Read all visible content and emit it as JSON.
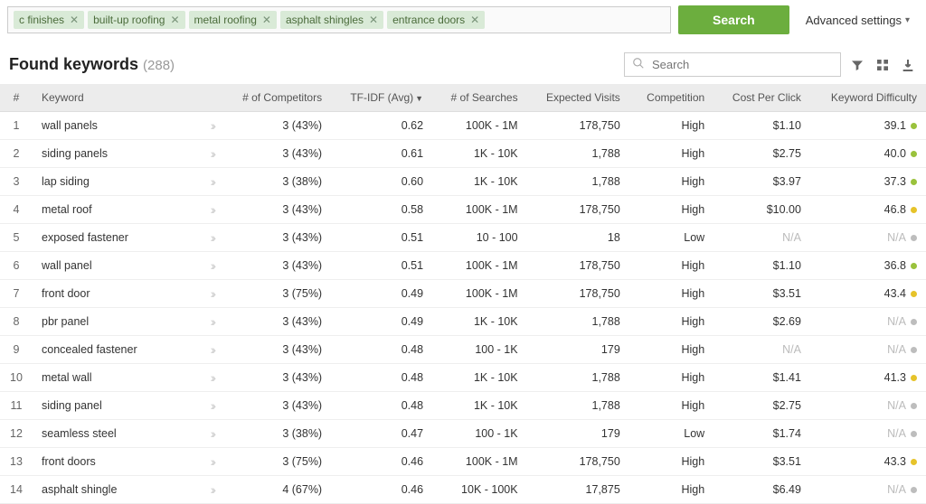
{
  "tags": [
    "c finishes",
    "built-up roofing",
    "metal roofing",
    "asphalt shingles",
    "entrance doors"
  ],
  "search_btn": "Search",
  "advanced": "Advanced settings",
  "found_label": "Found keywords",
  "found_count": "(288)",
  "search_placeholder": "Search",
  "columns": {
    "idx": "#",
    "keyword": "Keyword",
    "competitors": "# of Competitors",
    "tfidf": "TF-IDF (Avg)",
    "searches": "# of Searches",
    "visits": "Expected Visits",
    "competition": "Competition",
    "cpc": "Cost Per Click",
    "difficulty": "Keyword Difficulty"
  },
  "dot_colors": {
    "green": "#9ac23c",
    "yellow": "#e6c32a",
    "grey": "#bdbdbd"
  },
  "rows": [
    {
      "n": "1",
      "kw": "wall panels",
      "comp": "3 (43%)",
      "tfidf": "0.62",
      "search": "100K - 1M",
      "visits": "178,750",
      "compet": "High",
      "cpc": "$1.10",
      "diff": "39.1",
      "dot": "green"
    },
    {
      "n": "2",
      "kw": "siding panels",
      "comp": "3 (43%)",
      "tfidf": "0.61",
      "search": "1K - 10K",
      "visits": "1,788",
      "compet": "High",
      "cpc": "$2.75",
      "diff": "40.0",
      "dot": "green"
    },
    {
      "n": "3",
      "kw": "lap siding",
      "comp": "3 (38%)",
      "tfidf": "0.60",
      "search": "1K - 10K",
      "visits": "1,788",
      "compet": "High",
      "cpc": "$3.97",
      "diff": "37.3",
      "dot": "green"
    },
    {
      "n": "4",
      "kw": "metal roof",
      "comp": "3 (43%)",
      "tfidf": "0.58",
      "search": "100K - 1M",
      "visits": "178,750",
      "compet": "High",
      "cpc": "$10.00",
      "diff": "46.8",
      "dot": "yellow"
    },
    {
      "n": "5",
      "kw": "exposed fastener",
      "comp": "3 (43%)",
      "tfidf": "0.51",
      "search": "10 - 100",
      "visits": "18",
      "compet": "Low",
      "cpc": "N/A",
      "diff": "N/A",
      "dot": "grey"
    },
    {
      "n": "6",
      "kw": "wall panel",
      "comp": "3 (43%)",
      "tfidf": "0.51",
      "search": "100K - 1M",
      "visits": "178,750",
      "compet": "High",
      "cpc": "$1.10",
      "diff": "36.8",
      "dot": "green"
    },
    {
      "n": "7",
      "kw": "front door",
      "comp": "3 (75%)",
      "tfidf": "0.49",
      "search": "100K - 1M",
      "visits": "178,750",
      "compet": "High",
      "cpc": "$3.51",
      "diff": "43.4",
      "dot": "yellow"
    },
    {
      "n": "8",
      "kw": "pbr panel",
      "comp": "3 (43%)",
      "tfidf": "0.49",
      "search": "1K - 10K",
      "visits": "1,788",
      "compet": "High",
      "cpc": "$2.69",
      "diff": "N/A",
      "dot": "grey"
    },
    {
      "n": "9",
      "kw": "concealed fastener",
      "comp": "3 (43%)",
      "tfidf": "0.48",
      "search": "100 - 1K",
      "visits": "179",
      "compet": "High",
      "cpc": "N/A",
      "diff": "N/A",
      "dot": "grey"
    },
    {
      "n": "10",
      "kw": "metal wall",
      "comp": "3 (43%)",
      "tfidf": "0.48",
      "search": "1K - 10K",
      "visits": "1,788",
      "compet": "High",
      "cpc": "$1.41",
      "diff": "41.3",
      "dot": "yellow"
    },
    {
      "n": "11",
      "kw": "siding panel",
      "comp": "3 (43%)",
      "tfidf": "0.48",
      "search": "1K - 10K",
      "visits": "1,788",
      "compet": "High",
      "cpc": "$2.75",
      "diff": "N/A",
      "dot": "grey"
    },
    {
      "n": "12",
      "kw": "seamless steel",
      "comp": "3 (38%)",
      "tfidf": "0.47",
      "search": "100 - 1K",
      "visits": "179",
      "compet": "Low",
      "cpc": "$1.74",
      "diff": "N/A",
      "dot": "grey"
    },
    {
      "n": "13",
      "kw": "front doors",
      "comp": "3 (75%)",
      "tfidf": "0.46",
      "search": "100K - 1M",
      "visits": "178,750",
      "compet": "High",
      "cpc": "$3.51",
      "diff": "43.3",
      "dot": "yellow"
    },
    {
      "n": "14",
      "kw": "asphalt shingle",
      "comp": "4 (67%)",
      "tfidf": "0.46",
      "search": "10K - 100K",
      "visits": "17,875",
      "compet": "High",
      "cpc": "$6.49",
      "diff": "N/A",
      "dot": "grey"
    }
  ]
}
